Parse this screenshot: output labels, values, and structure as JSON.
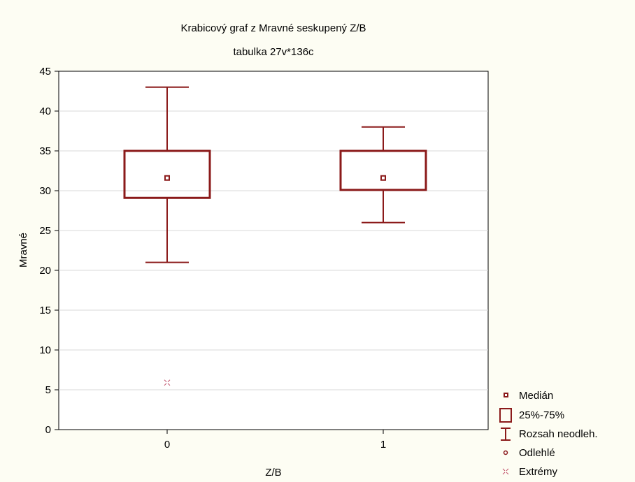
{
  "chart_data": {
    "type": "boxplot",
    "title": "Krabicový graf z Mravné seskupený Z/B",
    "subtitle": "tabulka 27v*136c",
    "xlabel": "Z/B",
    "ylabel": "Mravné",
    "ylim": [
      0,
      45
    ],
    "yticks": [
      "0",
      "5",
      "10",
      "15",
      "20",
      "25",
      "30",
      "35",
      "40",
      "45"
    ],
    "grid": true,
    "legend_position": "right-bottom",
    "groups": [
      {
        "label": "0",
        "median": 31.6,
        "q1": 29.1,
        "q3": 35.0,
        "whisker_low": 21.0,
        "whisker_high": 43.0,
        "extremes": [
          5.9
        ]
      },
      {
        "label": "1",
        "median": 31.6,
        "q1": 30.1,
        "q3": 35.0,
        "whisker_low": 26.0,
        "whisker_high": 38.0,
        "extremes": []
      }
    ],
    "legend": [
      {
        "key": "median",
        "label": "Medián"
      },
      {
        "key": "box",
        "label": "25%-75%"
      },
      {
        "key": "whisker",
        "label": "Rozsah neodleh."
      },
      {
        "key": "outlier",
        "label": "Odlehlé"
      },
      {
        "key": "extreme",
        "label": "Extrémy"
      }
    ],
    "colors": {
      "box": "#8b1a1a",
      "extreme": "#c0506a",
      "grid": "#d8d8d8",
      "background": "#fdfdf3"
    }
  }
}
